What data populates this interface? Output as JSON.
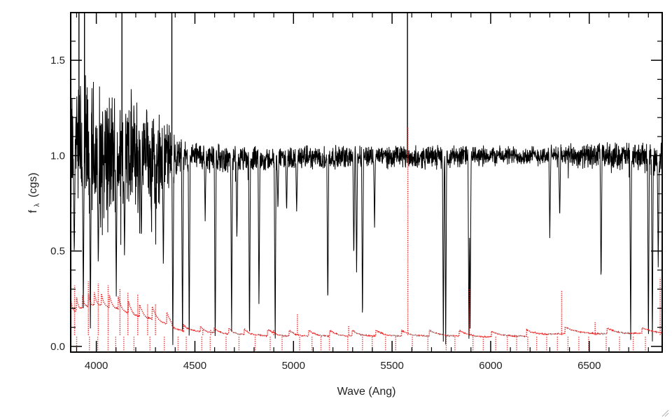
{
  "chart_data": {
    "type": "line",
    "xlabel": "Wave (Ang)",
    "ylabel": "f",
    "ylabel_subscript": "λ",
    "ylabel_unit": "(cgs)",
    "xlim": [
      3870,
      6870
    ],
    "ylim": [
      -0.03,
      1.75
    ],
    "xticks": [
      4000,
      4500,
      5000,
      5500,
      6000,
      6500
    ],
    "yticks": [
      0.0,
      0.5,
      1.0,
      1.5
    ],
    "ytick_labels": [
      "0.0",
      "0.5",
      "1.0",
      "1.5"
    ],
    "grid": false,
    "series": [
      {
        "color": "#000000",
        "style": "solid",
        "x": [
          3880,
          3950,
          4000,
          4050,
          4100,
          4150,
          4200,
          4250,
          4300,
          4350,
          4400,
          4450,
          4500,
          4600,
          4700,
          4800,
          4900,
          5000,
          5200,
          5400,
          5600,
          5800,
          6000,
          6200,
          6400,
          6600,
          6860
        ],
        "y": [
          1.0,
          1.02,
          1.0,
          0.99,
          1.0,
          1.0,
          1.0,
          0.99,
          0.99,
          0.98,
          0.99,
          0.99,
          1.0,
          0.99,
          0.98,
          0.98,
          0.98,
          0.99,
          0.99,
          1.0,
          0.99,
          1.0,
          1.0,
          1.0,
          1.0,
          1.0,
          0.99
        ],
        "noise_amplitude": [
          0.45,
          0.48,
          0.45,
          0.45,
          0.4,
          0.38,
          0.38,
          0.34,
          0.3,
          0.28,
          0.12,
          0.1,
          0.09,
          0.09,
          0.08,
          0.08,
          0.07,
          0.07,
          0.07,
          0.07,
          0.07,
          0.07,
          0.06,
          0.06,
          0.07,
          0.08,
          0.1
        ],
        "absorption_lines": [
          {
            "x": 3888,
            "depth": 0.55
          },
          {
            "x": 3934,
            "depth": 0.85
          },
          {
            "x": 3970,
            "depth": 0.95
          },
          {
            "x": 4010,
            "depth": 0.6
          },
          {
            "x": 4101,
            "depth": 0.75
          },
          {
            "x": 4143,
            "depth": 0.55
          },
          {
            "x": 4228,
            "depth": 0.45
          },
          {
            "x": 4340,
            "depth": 0.6
          },
          {
            "x": 4388,
            "depth": 1.02
          },
          {
            "x": 4437,
            "depth": 1.02
          },
          {
            "x": 4471,
            "depth": 1.02
          },
          {
            "x": 4552,
            "depth": 0.35
          },
          {
            "x": 4603,
            "depth": 1.02
          },
          {
            "x": 4686,
            "depth": 0.95
          },
          {
            "x": 4713,
            "depth": 0.45
          },
          {
            "x": 4777,
            "depth": 1.02
          },
          {
            "x": 4825,
            "depth": 0.8
          },
          {
            "x": 4907,
            "depth": 1.0
          },
          {
            "x": 4921,
            "depth": 0.28
          },
          {
            "x": 4965,
            "depth": 0.3
          },
          {
            "x": 5016,
            "depth": 0.3
          },
          {
            "x": 5174,
            "depth": 0.82
          },
          {
            "x": 5306,
            "depth": 0.55
          },
          {
            "x": 5320,
            "depth": 0.65
          },
          {
            "x": 5350,
            "depth": 0.92
          },
          {
            "x": 5411,
            "depth": 0.4
          },
          {
            "x": 5760,
            "depth": 1.02
          },
          {
            "x": 5772,
            "depth": 1.02
          },
          {
            "x": 5890,
            "depth": 1.05
          },
          {
            "x": 5896,
            "depth": 0.95
          },
          {
            "x": 6300,
            "depth": 0.45
          },
          {
            "x": 6350,
            "depth": 0.35
          },
          {
            "x": 6560,
            "depth": 0.7
          },
          {
            "x": 6710,
            "depth": 1.02
          },
          {
            "x": 6800,
            "depth": 1.02
          },
          {
            "x": 6820,
            "depth": 1.02
          },
          {
            "x": 6850,
            "depth": 0.6
          }
        ],
        "emission_spikes": [
          {
            "x": 3912,
            "top": 1.75
          },
          {
            "x": 3940,
            "top": 1.75
          },
          {
            "x": 4130,
            "top": 1.75
          },
          {
            "x": 4383,
            "top": 1.75
          },
          {
            "x": 5578,
            "top": 1.75
          }
        ]
      },
      {
        "color": "#dd1111",
        "style": "dotted",
        "x": [
          3880,
          3950,
          4000,
          4050,
          4100,
          4150,
          4200,
          4250,
          4300,
          4350,
          4400,
          4450,
          4500,
          4600,
          4700,
          4800,
          4900,
          5000,
          5200,
          5400,
          5600,
          5800,
          6000,
          6200,
          6400,
          6600,
          6860
        ],
        "y": [
          0.18,
          0.21,
          0.22,
          0.21,
          0.2,
          0.18,
          0.16,
          0.15,
          0.14,
          0.12,
          0.09,
          0.08,
          0.08,
          0.07,
          0.065,
          0.06,
          0.055,
          0.055,
          0.055,
          0.055,
          0.055,
          0.055,
          0.05,
          0.055,
          0.07,
          0.065,
          0.07
        ],
        "scallop_period": [
          30,
          30,
          30,
          32,
          34,
          36,
          38,
          40,
          42,
          44,
          46,
          48,
          50,
          52,
          54,
          56,
          60,
          62,
          66,
          70,
          74,
          78,
          82,
          86,
          90,
          94,
          98
        ]
      }
    ]
  }
}
